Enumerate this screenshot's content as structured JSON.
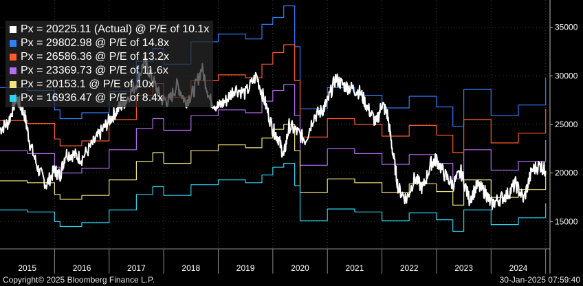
{
  "chart_data": {
    "type": "line",
    "xlabel": "",
    "ylabel": "",
    "x_tick_labels": [
      "2015",
      "2016",
      "2017",
      "2018",
      "2019",
      "2020",
      "2021",
      "2022",
      "2023",
      "2024"
    ],
    "y_tick_labels": [
      "15000",
      "20000",
      "25000",
      "30000",
      "35000"
    ],
    "y_ticks": [
      15000,
      20000,
      25000,
      30000,
      35000
    ],
    "xlim": [
      2015.0,
      2025.08
    ],
    "ylim": [
      12200,
      37800
    ],
    "grid": true,
    "legend_position": "top-left",
    "series": [
      {
        "name": "Px = 29802.98 @ P/E of 14.8x",
        "color": "#2f7fff",
        "x": [
          2015.0,
          2015.5,
          2016.0,
          2016.1,
          2016.5,
          2017.0,
          2017.5,
          2017.8,
          2018.0,
          2018.5,
          2019.0,
          2019.5,
          2019.8,
          2020.0,
          2020.2,
          2020.4,
          2020.5,
          2021.0,
          2021.5,
          2022.0,
          2022.5,
          2023.0,
          2023.3,
          2023.5,
          2024.0,
          2024.5,
          2025.0
        ],
        "values": [
          28800,
          28500,
          26500,
          25600,
          26200,
          28400,
          31500,
          32800,
          31200,
          33500,
          34300,
          33800,
          35300,
          36000,
          37200,
          33000,
          26600,
          28800,
          28000,
          26700,
          27900,
          26800,
          24800,
          28600,
          25900,
          27000,
          29800
        ]
      },
      {
        "name": "Px = 26586.36 @ P/E of 13.2x",
        "color": "#ff5a28",
        "x": [
          2015.0,
          2015.5,
          2016.0,
          2016.1,
          2016.5,
          2017.0,
          2017.5,
          2017.8,
          2018.0,
          2018.5,
          2019.0,
          2019.5,
          2019.8,
          2020.0,
          2020.2,
          2020.4,
          2020.5,
          2021.0,
          2021.5,
          2022.0,
          2022.5,
          2023.0,
          2023.3,
          2023.5,
          2024.0,
          2024.5,
          2025.0
        ],
        "values": [
          25400,
          25100,
          23500,
          22800,
          23300,
          25500,
          28000,
          29200,
          27800,
          29500,
          30100,
          29800,
          31200,
          32400,
          33200,
          29500,
          23700,
          25600,
          25000,
          23800,
          24900,
          23900,
          22100,
          25500,
          23100,
          24100,
          26600
        ]
      },
      {
        "name": "Px = 23369.73 @ P/E of 11.6x",
        "color": "#b46cf2",
        "x": [
          2015.0,
          2015.5,
          2016.0,
          2016.1,
          2016.5,
          2017.0,
          2017.5,
          2017.8,
          2018.0,
          2018.5,
          2019.0,
          2019.5,
          2019.8,
          2020.0,
          2020.2,
          2020.4,
          2020.5,
          2021.0,
          2021.5,
          2022.0,
          2022.5,
          2023.0,
          2023.3,
          2023.5,
          2024.0,
          2024.5,
          2025.0
        ],
        "values": [
          22300,
          22000,
          20600,
          20000,
          20500,
          22400,
          24600,
          25600,
          24400,
          25900,
          26500,
          26200,
          27400,
          28500,
          29100,
          25900,
          20800,
          22500,
          22000,
          20900,
          21900,
          21000,
          19400,
          22400,
          20300,
          21200,
          23400
        ]
      },
      {
        "name": "Px = 20153.1 @ P/E of 10x",
        "color": "#f2e57a",
        "x": [
          2015.0,
          2015.5,
          2016.0,
          2016.1,
          2016.5,
          2017.0,
          2017.5,
          2017.8,
          2018.0,
          2018.5,
          2019.0,
          2019.5,
          2019.8,
          2020.0,
          2020.2,
          2020.4,
          2020.5,
          2021.0,
          2021.5,
          2022.0,
          2022.5,
          2023.0,
          2023.3,
          2023.5,
          2024.0,
          2024.5,
          2025.0
        ],
        "values": [
          19200,
          19000,
          17800,
          17300,
          17700,
          19300,
          21200,
          22100,
          21000,
          22300,
          22900,
          22600,
          23600,
          24500,
          25000,
          22300,
          18000,
          19400,
          19000,
          18000,
          18900,
          18100,
          16700,
          19300,
          17500,
          18300,
          20200
        ]
      },
      {
        "name": "Px = 16936.47 @ P/E of 8.4x",
        "color": "#2ad4f0",
        "x": [
          2015.0,
          2015.5,
          2016.0,
          2016.1,
          2016.5,
          2017.0,
          2017.5,
          2017.8,
          2018.0,
          2018.5,
          2019.0,
          2019.5,
          2019.8,
          2020.0,
          2020.2,
          2020.4,
          2020.5,
          2021.0,
          2021.5,
          2022.0,
          2022.5,
          2023.0,
          2023.3,
          2023.5,
          2024.0,
          2024.5,
          2025.0
        ],
        "values": [
          16200,
          16000,
          15000,
          14500,
          14900,
          16200,
          17800,
          18600,
          17700,
          18800,
          19300,
          19000,
          19800,
          20600,
          21000,
          18700,
          15100,
          16300,
          16000,
          15100,
          15900,
          15200,
          14000,
          16200,
          14700,
          15400,
          16900
        ]
      },
      {
        "name": "Px = 20225.11 (Actual) @ P/E of 10.1x",
        "color": "#ffffff",
        "x": [
          2015.0,
          2015.15,
          2015.3,
          2015.45,
          2015.55,
          2015.7,
          2015.85,
          2016.0,
          2016.1,
          2016.2,
          2016.35,
          2016.5,
          2016.7,
          2016.85,
          2017.0,
          2017.15,
          2017.3,
          2017.5,
          2017.65,
          2017.8,
          2017.95,
          2018.1,
          2018.25,
          2018.4,
          2018.55,
          2018.7,
          2018.85,
          2019.0,
          2019.15,
          2019.3,
          2019.5,
          2019.7,
          2019.85,
          2020.0,
          2020.1,
          2020.2,
          2020.3,
          2020.45,
          2020.6,
          2020.75,
          2020.9,
          2021.0,
          2021.15,
          2021.3,
          2021.45,
          2021.6,
          2021.75,
          2021.9,
          2022.0,
          2022.1,
          2022.2,
          2022.3,
          2022.45,
          2022.6,
          2022.75,
          2022.9,
          2023.0,
          2023.15,
          2023.3,
          2023.45,
          2023.6,
          2023.75,
          2023.9,
          2024.0,
          2024.15,
          2024.3,
          2024.45,
          2024.6,
          2024.75,
          2024.9,
          2025.0
        ],
        "values": [
          24500,
          25200,
          27800,
          26000,
          23000,
          20400,
          18800,
          20300,
          19700,
          22000,
          21900,
          21500,
          23000,
          24200,
          25400,
          26500,
          27400,
          29200,
          31500,
          29600,
          27600,
          27400,
          29100,
          27300,
          28400,
          30800,
          27500,
          26800,
          27500,
          28700,
          28200,
          30000,
          27400,
          24500,
          23600,
          21700,
          24900,
          24200,
          23400,
          25800,
          26400,
          27300,
          29700,
          29000,
          28700,
          28300,
          26600,
          25100,
          27200,
          26000,
          22100,
          18400,
          17300,
          19500,
          18400,
          21000,
          21400,
          19800,
          18800,
          20100,
          17300,
          18700,
          18000,
          16800,
          17300,
          17800,
          18900,
          17300,
          20300,
          20800,
          20225
        ]
      }
    ]
  },
  "footer": {
    "copyright": "Copyright© 2025 Bloomberg Finance L.P.",
    "timestamp": "30-Jan-2025 07:59:40"
  }
}
